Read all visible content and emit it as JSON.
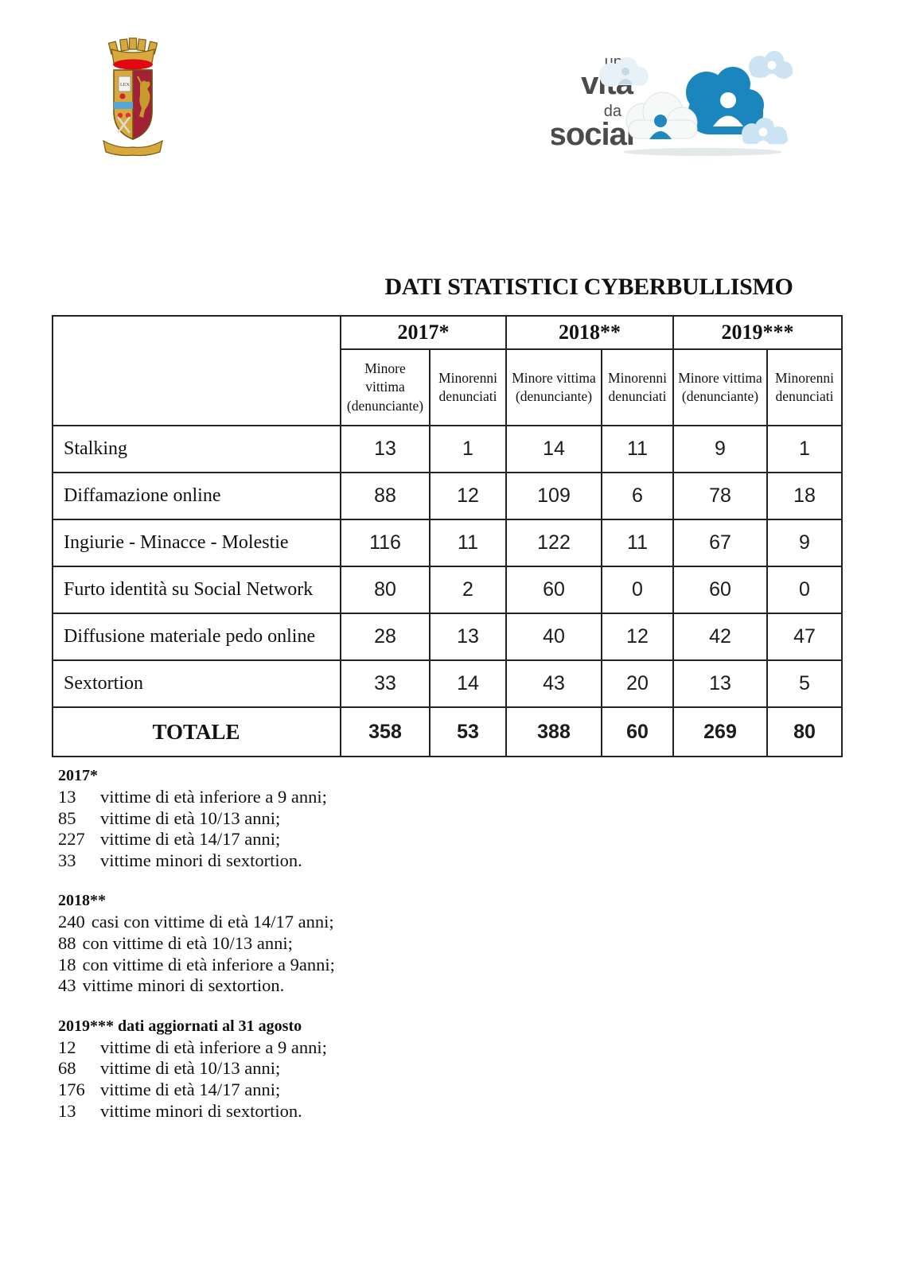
{
  "header": {
    "title": "DATI STATISTICI CYBERBULLISMO"
  },
  "logos": {
    "police_crest": {
      "name": "polizia-di-stato-crest",
      "lex": "LEX",
      "colors": {
        "gold": "#d7a93c",
        "crimson": "#a32136",
        "red": "#e30613",
        "blue_band": "#56a7d8"
      }
    },
    "campaign": {
      "name": "una-vita-da-social",
      "lines": [
        "una",
        "vita",
        "da",
        "social"
      ],
      "colors": {
        "text": "#4b4b4d",
        "blue_cloud": "#1b86bd",
        "light_cloud": "#cbe3f2",
        "white_cloud": "#f7f8f8"
      }
    }
  },
  "table": {
    "years": [
      "2017*",
      "2018**",
      "2019***"
    ],
    "sub_headers": [
      "Minore vittima (denunciante)",
      "Minorenni denunciati"
    ],
    "rows": [
      {
        "label": "Stalking",
        "values": [
          13,
          1,
          14,
          11,
          9,
          1
        ]
      },
      {
        "label": "Diffamazione online",
        "values": [
          88,
          12,
          109,
          6,
          78,
          18
        ]
      },
      {
        "label": "Ingiurie - Minacce - Molestie",
        "values": [
          116,
          11,
          122,
          11,
          67,
          9
        ]
      },
      {
        "label": "Furto identità su Social Network",
        "values": [
          80,
          2,
          60,
          0,
          60,
          0
        ]
      },
      {
        "label": "Diffusione materiale pedo online",
        "values": [
          28,
          13,
          40,
          12,
          42,
          47
        ]
      },
      {
        "label": "Sextortion",
        "values": [
          33,
          14,
          43,
          20,
          13,
          5
        ]
      }
    ],
    "total_row": {
      "label": "TOTALE",
      "values": [
        358,
        53,
        388,
        60,
        269,
        80
      ]
    }
  },
  "footnotes": [
    {
      "heading": "2017*",
      "aligned": true,
      "lines": [
        {
          "n": "13",
          "t": "vittime di età inferiore a 9 anni;"
        },
        {
          "n": "85",
          "t": "vittime di età 10/13 anni;"
        },
        {
          "n": "227",
          "t": "vittime di età 14/17 anni;"
        },
        {
          "n": "33",
          "t": "vittime minori di sextortion."
        }
      ]
    },
    {
      "heading": "2018**",
      "aligned": false,
      "lines": [
        {
          "n": "240",
          "t": "casi con vittime di età 14/17 anni;"
        },
        {
          "n": "88",
          "t": "con vittime di età 10/13 anni;"
        },
        {
          "n": "18",
          "t": "con vittime di età inferiore a 9anni;"
        },
        {
          "n": "43",
          "t": "vittime minori di sextortion."
        }
      ]
    },
    {
      "heading": "2019*** dati aggiornati al 31 agosto",
      "aligned": true,
      "lines": [
        {
          "n": "12",
          "t": "vittime di età inferiore a 9 anni;"
        },
        {
          "n": "68",
          "t": "vittime di età 10/13 anni;"
        },
        {
          "n": "176",
          "t": "vittime di età 14/17 anni;"
        },
        {
          "n": "13",
          "t": "vittime minori di sextortion."
        }
      ]
    }
  ]
}
